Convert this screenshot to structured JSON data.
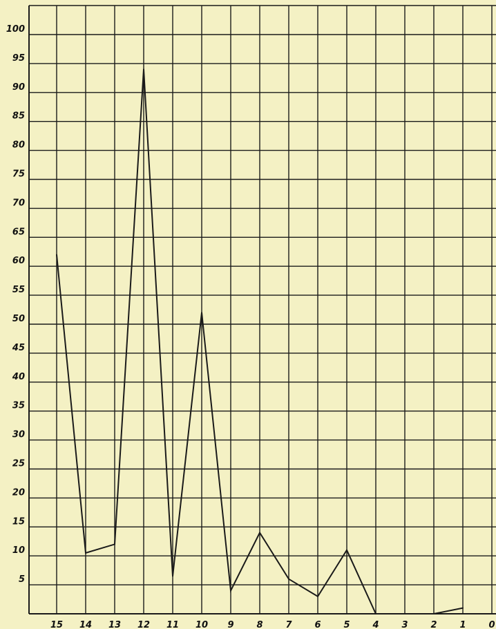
{
  "colors": {
    "background": "#f4f1c4",
    "grid": "#1a1a1a",
    "line": "#1a1a1a",
    "text": "#111111"
  },
  "chart_data": {
    "type": "line",
    "title": "",
    "xlabel": "",
    "ylabel": "",
    "x_axis_reversed": true,
    "xlim": [
      0,
      15
    ],
    "ylim": [
      0,
      100
    ],
    "grid": true,
    "x_ticks": [
      15,
      14,
      13,
      12,
      11,
      10,
      9,
      8,
      7,
      6,
      5,
      4,
      3,
      2,
      1,
      0
    ],
    "y_ticks": [
      5,
      10,
      15,
      20,
      25,
      30,
      35,
      40,
      45,
      50,
      55,
      60,
      65,
      70,
      75,
      80,
      85,
      90,
      95,
      100
    ],
    "series": [
      {
        "x": [
          15,
          14,
          13,
          12,
          11,
          10,
          9,
          8,
          7,
          6,
          5,
          4,
          3,
          2,
          1
        ],
        "values": [
          62,
          10.5,
          12,
          94,
          6.5,
          52,
          4,
          14,
          6,
          3,
          11,
          0,
          0,
          0,
          1
        ]
      }
    ]
  }
}
